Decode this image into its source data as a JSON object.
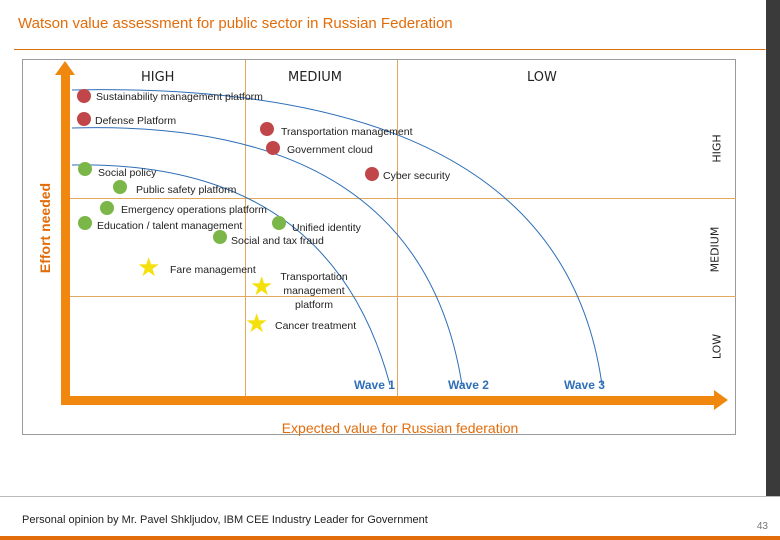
{
  "header": {
    "title": "Watson value assessment for public sector in Russian Federation"
  },
  "columns": [
    "HIGH",
    "MEDIUM",
    "LOW"
  ],
  "rows": [
    "HIGH",
    "MEDIUM",
    "LOW"
  ],
  "axes": {
    "y_title": "Effort needed",
    "x_title": "Expected value for Russian federation"
  },
  "waves": [
    "Wave 1",
    "Wave 2",
    "Wave 3"
  ],
  "colors": {
    "red": "#c0464a",
    "green": "#7ab648",
    "star": "#f4e00c",
    "accent": "#e36c0a",
    "wave": "#2e6fb7"
  },
  "items": [
    {
      "label": "Sustainability management platform",
      "marker": "red-circle"
    },
    {
      "label": "Defense Platform",
      "marker": "red-circle"
    },
    {
      "label": "Transportation management",
      "marker": "red-circle"
    },
    {
      "label": "Government cloud",
      "marker": "red-circle"
    },
    {
      "label": "Cyber security",
      "marker": "red-circle"
    },
    {
      "label": "Social policy",
      "marker": "green-circle"
    },
    {
      "label": "Public safety platform",
      "marker": "green-circle"
    },
    {
      "label": "Emergency operations platform",
      "marker": "green-circle"
    },
    {
      "label": "Education / talent management",
      "marker": "green-circle"
    },
    {
      "label": "Unified identity",
      "marker": "green-circle"
    },
    {
      "label": "Social and tax fraud",
      "marker": "green-circle"
    },
    {
      "label": "Fare management",
      "marker": "star"
    },
    {
      "label": "Transportation management platform",
      "marker": "star"
    },
    {
      "label": "Cancer treatment",
      "marker": "star"
    }
  ],
  "footer": {
    "note": "Personal opinion by Mr. Pavel Shkljudov, IBM CEE Industry Leader for Government",
    "page": "43"
  }
}
